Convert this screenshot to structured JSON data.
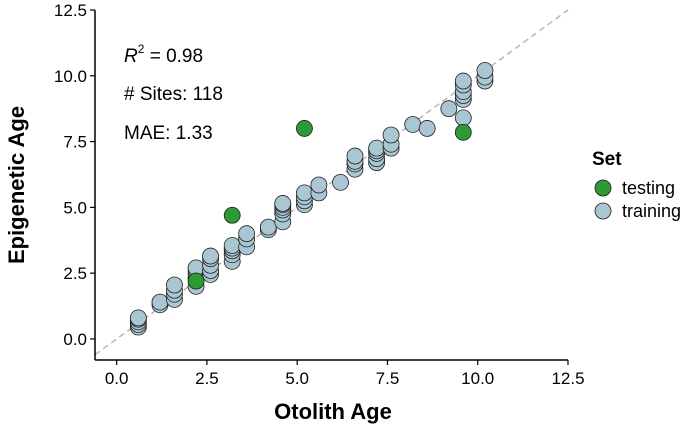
{
  "chart_data": {
    "type": "scatter",
    "xlabel": "Otolith Age",
    "ylabel": "Epigenetic Age",
    "xlim": [
      -0.6,
      12.5
    ],
    "ylim": [
      -0.8,
      12.5
    ],
    "xticks": [
      "0.0",
      "2.5",
      "5.0",
      "7.5",
      "10.0",
      "12.5"
    ],
    "yticks": [
      "0.0",
      "2.5",
      "5.0",
      "7.5",
      "10.0",
      "12.5"
    ],
    "xtick_values": [
      0,
      2.5,
      5,
      7.5,
      10,
      12.5
    ],
    "ytick_values": [
      0,
      2.5,
      5,
      7.5,
      10,
      12.5
    ],
    "grid": false,
    "reference_line": "y = x (dashed)",
    "annotations": {
      "r2_symbol": "R",
      "r2_exp": "2",
      "r2_value": " = 0.98",
      "sites": "# Sites: 118",
      "mae": "MAE: 1.33"
    },
    "legend": {
      "title": "Set",
      "position": "right"
    },
    "series": [
      {
        "name": "training",
        "color": "#a9c6d2",
        "points": [
          [
            0.6,
            0.45
          ],
          [
            0.6,
            0.55
          ],
          [
            0.6,
            0.65
          ],
          [
            0.6,
            0.75
          ],
          [
            0.6,
            0.8
          ],
          [
            1.2,
            1.3
          ],
          [
            1.2,
            1.4
          ],
          [
            1.6,
            1.5
          ],
          [
            1.6,
            1.7
          ],
          [
            1.6,
            1.85
          ],
          [
            1.6,
            2.05
          ],
          [
            2.2,
            2.0
          ],
          [
            2.2,
            2.3
          ],
          [
            2.2,
            2.45
          ],
          [
            2.2,
            2.6
          ],
          [
            2.2,
            2.7
          ],
          [
            2.6,
            2.45
          ],
          [
            2.6,
            2.6
          ],
          [
            2.6,
            2.8
          ],
          [
            2.6,
            3.05
          ],
          [
            2.6,
            3.15
          ],
          [
            3.2,
            2.95
          ],
          [
            3.2,
            3.2
          ],
          [
            3.2,
            3.35
          ],
          [
            3.2,
            3.45
          ],
          [
            3.2,
            3.55
          ],
          [
            3.6,
            3.5
          ],
          [
            3.6,
            3.8
          ],
          [
            3.6,
            4.0
          ],
          [
            4.2,
            4.15
          ],
          [
            4.2,
            4.25
          ],
          [
            4.6,
            4.45
          ],
          [
            4.6,
            4.75
          ],
          [
            4.6,
            4.9
          ],
          [
            4.6,
            5.0
          ],
          [
            4.6,
            5.1
          ],
          [
            4.6,
            5.15
          ],
          [
            5.2,
            5.1
          ],
          [
            5.2,
            5.25
          ],
          [
            5.2,
            5.4
          ],
          [
            5.2,
            5.55
          ],
          [
            5.6,
            5.55
          ],
          [
            5.6,
            5.85
          ],
          [
            6.2,
            5.95
          ],
          [
            6.6,
            6.45
          ],
          [
            6.6,
            6.65
          ],
          [
            6.6,
            6.75
          ],
          [
            6.6,
            6.95
          ],
          [
            7.2,
            6.7
          ],
          [
            7.2,
            6.85
          ],
          [
            7.2,
            7.05
          ],
          [
            7.2,
            7.15
          ],
          [
            7.2,
            7.25
          ],
          [
            7.6,
            7.25
          ],
          [
            7.6,
            7.4
          ],
          [
            7.6,
            7.75
          ],
          [
            8.2,
            8.15
          ],
          [
            8.6,
            8.0
          ],
          [
            9.2,
            8.75
          ],
          [
            9.6,
            8.4
          ],
          [
            9.6,
            9.1
          ],
          [
            9.6,
            9.25
          ],
          [
            9.6,
            9.4
          ],
          [
            9.6,
            9.65
          ],
          [
            9.6,
            9.8
          ],
          [
            10.2,
            9.8
          ],
          [
            10.2,
            9.95
          ],
          [
            10.2,
            10.2
          ]
        ]
      },
      {
        "name": "testing",
        "color": "#2e9a35",
        "points": [
          [
            2.2,
            2.2
          ],
          [
            3.2,
            4.7
          ],
          [
            5.2,
            8.0
          ],
          [
            9.6,
            7.85
          ]
        ]
      }
    ]
  }
}
